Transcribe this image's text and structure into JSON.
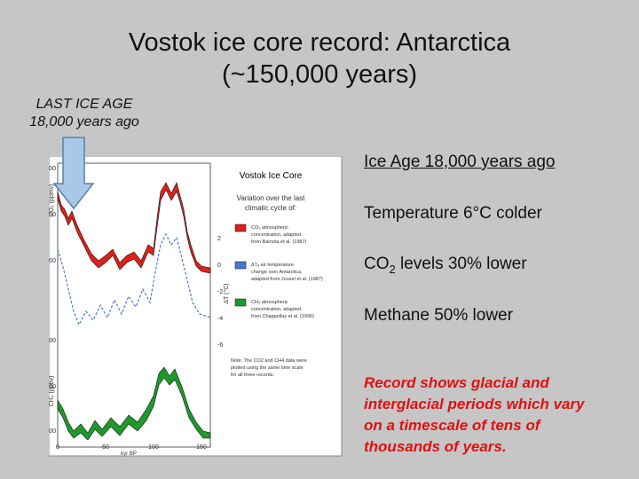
{
  "title": {
    "line1": "Vostok ice core record: Antarctica",
    "line2": "(~150,000 years)"
  },
  "callout": {
    "line1": "LAST ICE AGE",
    "line2": "18,000 years ago"
  },
  "figure": {
    "title": "Vostok Ice Core",
    "subtitle": [
      "Variation over the last",
      "climatic cycle of:"
    ],
    "co2_axis_label": "CO₂ (ppmv)",
    "ch4_axis_label": "CH₄ (ppbv)",
    "temp_axis_label": "ΔT (°C)",
    "x_axis_label": "kyr BP",
    "co2_ticks": [
      "300",
      "250",
      "200"
    ],
    "ch4_ticks": [
      "700",
      "600",
      "500"
    ],
    "temp_ticks": [
      "2",
      "0",
      "-2",
      "-4",
      "-6"
    ],
    "x_ticks": [
      "0",
      "50",
      "100",
      "150"
    ],
    "legend": [
      {
        "color": "#e0201a",
        "lines": [
          "CO₂ atmospheric",
          "concentration, adapted",
          "from Barnola et al. (1987)"
        ]
      },
      {
        "color": "#4a78d0",
        "lines": [
          "ΔTₐ air temperature",
          "change over Antarctica,",
          "adapted from Jouzel et al. (1987)"
        ]
      },
      {
        "color": "#1e9a2a",
        "lines": [
          "CH₄ atmospheric",
          "concentration, adapted",
          "from Chappellaz et al. (1990)"
        ]
      }
    ],
    "note": [
      "Note: The CO2 and CH4 data were",
      "plotted using the same time scale",
      "for all three records."
    ]
  },
  "bullets": {
    "ice_age": "Ice Age 18,000 years ago",
    "temperature": "Temperature 6°C colder",
    "co2": {
      "before": "CO",
      "subscript": "2",
      "after": " levels 30% lower"
    },
    "methane": "Methane 50% lower",
    "record": [
      "Record shows glacial and",
      "interglacial periods which vary",
      "on a timescale of tens of",
      "thousands of years."
    ]
  }
}
